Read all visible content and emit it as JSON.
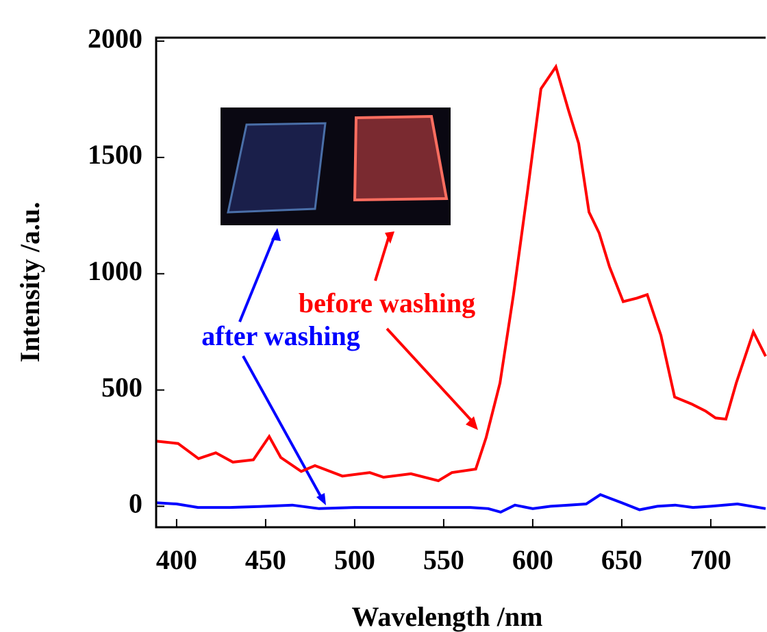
{
  "chart_data": {
    "type": "line",
    "x_label": "Wavelength /nm",
    "y_label": "Intensity /a.u.",
    "xlim": [
      388.5,
      730.8
    ],
    "xticks": [
      400,
      450,
      500,
      550,
      600,
      650,
      700
    ],
    "ylim": [
      -90,
      2015
    ],
    "yticks": [
      0,
      500,
      1000,
      1500,
      2000
    ],
    "grid": false,
    "annotations": [
      "before washing",
      "after washing"
    ],
    "series": [
      {
        "name": "before washing",
        "color": "#ff0000",
        "x": [
          388.5,
          400.8,
          412.3,
          422.0,
          431.6,
          443.1,
          452.0,
          458.5,
          470.0,
          477.7,
          493.1,
          508.5,
          516.2,
          531.6,
          547.0,
          554.6,
          568.0,
          573.8,
          581.6,
          589.2,
          597.0,
          604.6,
          613.0,
          620.0,
          625.8,
          631.6,
          637.3,
          643.1,
          650.8,
          658.5,
          664.3,
          672.0,
          679.7,
          689.2,
          697.0,
          702.7,
          708.5,
          714.3,
          723.9,
          730.8
        ],
        "values": [
          280,
          270,
          205,
          230,
          190,
          200,
          300,
          210,
          150,
          175,
          130,
          145,
          125,
          140,
          110,
          145,
          160,
          295,
          530,
          910,
          1350,
          1795,
          1890,
          1705,
          1560,
          1265,
          1175,
          1030,
          880,
          895,
          910,
          735,
          470,
          440,
          410,
          380,
          375,
          530,
          750,
          645
        ]
      },
      {
        "name": "after washing",
        "color": "#0000ff",
        "x": [
          388.5,
          400.0,
          412.0,
          430.0,
          450.0,
          465.0,
          480.0,
          500.0,
          525.0,
          550.0,
          565.0,
          575.0,
          582.0,
          590.0,
          600.0,
          610.0,
          620.0,
          630.0,
          638.0,
          650.0,
          660.0,
          670.0,
          680.0,
          690.0,
          700.0,
          715.0,
          730.8
        ],
        "values": [
          15,
          10,
          -5,
          -5,
          0,
          5,
          -10,
          -5,
          -5,
          -5,
          -5,
          -10,
          -25,
          5,
          -10,
          0,
          5,
          10,
          50,
          15,
          -15,
          0,
          5,
          -5,
          0,
          10,
          -10
        ]
      }
    ]
  }
}
